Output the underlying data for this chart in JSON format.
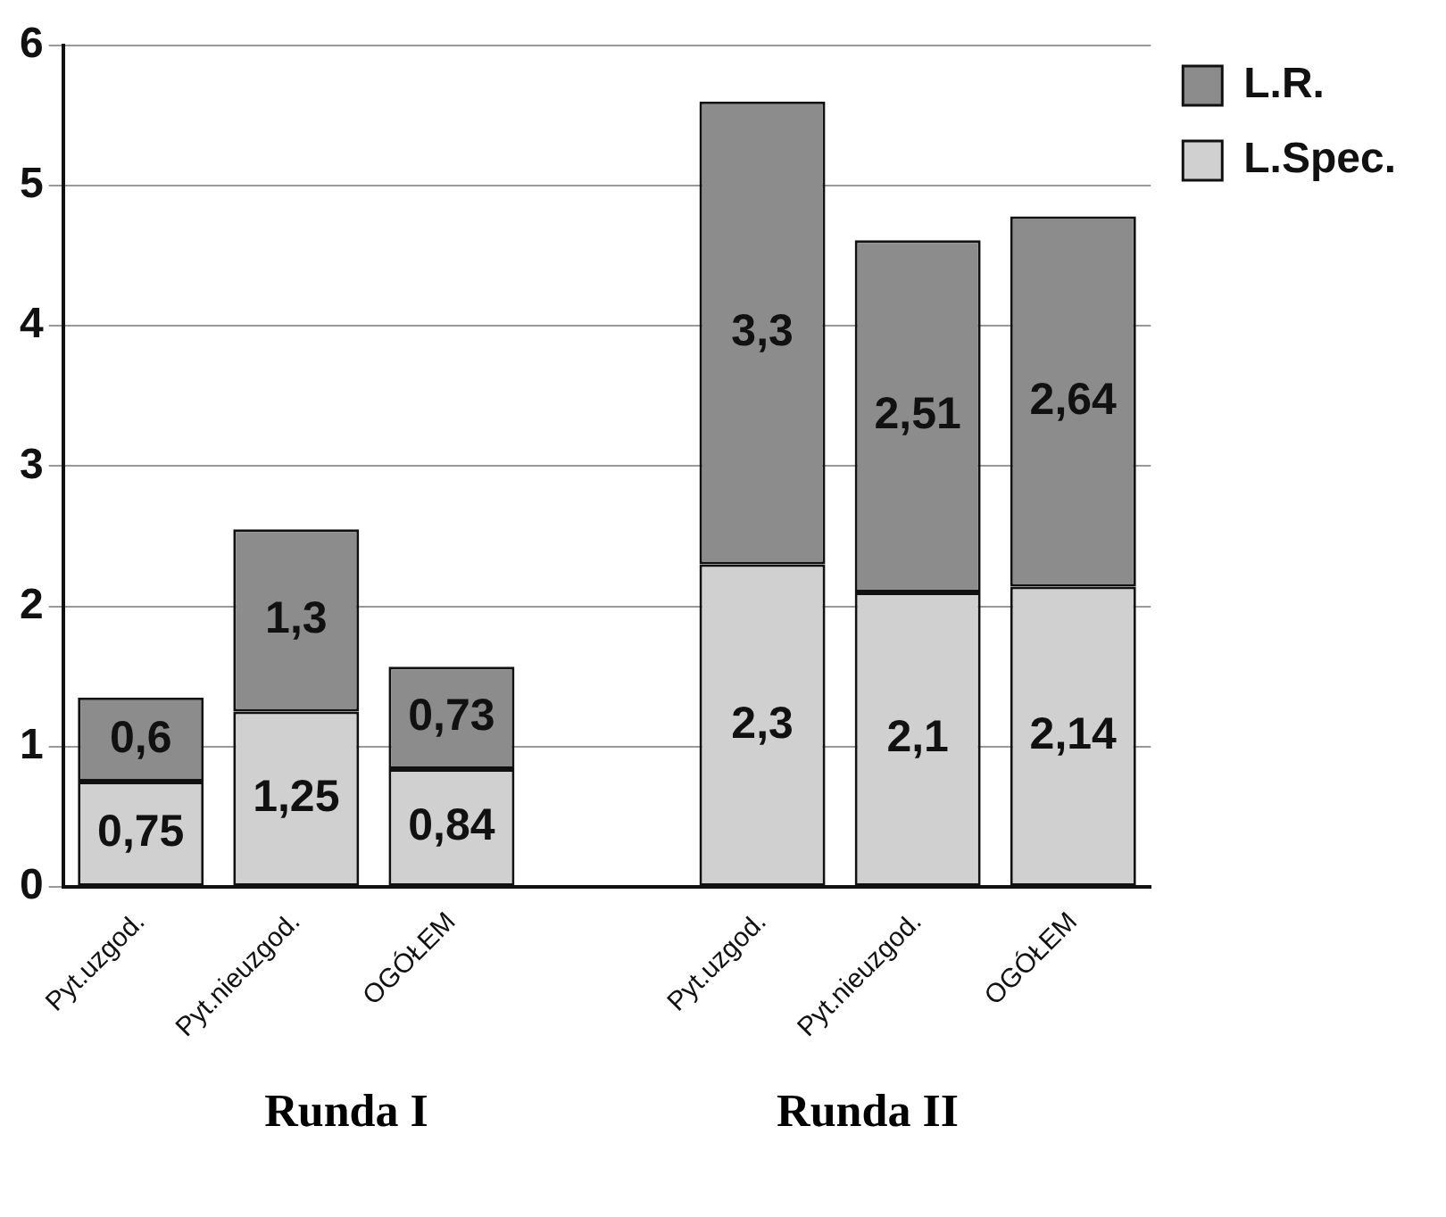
{
  "chart_data": {
    "type": "bar",
    "stacked": true,
    "categories": [
      "Pyt.uzgod.",
      "Pyt.nieuzgod.",
      "OGÓŁEM",
      null,
      "Pyt.uzgod.",
      "Pyt.nieuzgod.",
      "OGÓŁEM"
    ],
    "series": [
      {
        "name": "L.Spec.",
        "color": "#d0d0d0",
        "values": [
          0.75,
          1.25,
          0.84,
          null,
          2.3,
          2.1,
          2.14
        ],
        "value_labels": [
          "0,75",
          "1,25",
          "0,84",
          null,
          "2,3",
          "2,1",
          "2,14"
        ]
      },
      {
        "name": "L.R.",
        "color": "#8c8c8c",
        "values": [
          0.6,
          1.3,
          0.73,
          null,
          3.3,
          2.51,
          2.64
        ],
        "value_labels": [
          "0,6",
          "1,3",
          "0,73",
          null,
          "3,3",
          "2,51",
          "2,64"
        ]
      }
    ],
    "ylim": [
      0,
      6
    ],
    "yticks": [
      0,
      1,
      2,
      3,
      4,
      5,
      6
    ],
    "grid": "y",
    "legend": "top right",
    "annotations": [
      "Runda I",
      "Runda II"
    ]
  }
}
